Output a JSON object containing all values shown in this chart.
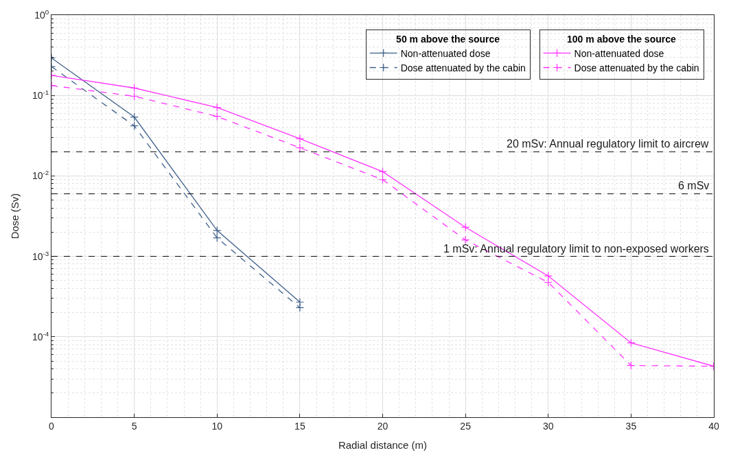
{
  "chart_data": {
    "type": "line",
    "xlabel": "Radial distance (m)",
    "ylabel": "Dose (Sv)",
    "x": [
      0,
      5,
      10,
      15,
      20,
      25,
      30,
      35,
      40
    ],
    "xlim": [
      0,
      40
    ],
    "xticks": [
      0,
      5,
      10,
      15,
      20,
      25,
      30,
      35,
      40
    ],
    "log": "y",
    "ylim": [
      1e-05,
      1
    ],
    "yticks": [
      {
        "value": 1e-05,
        "label": null
      },
      {
        "value": 0.0001,
        "label": "10$^{-4}$"
      },
      {
        "value": 0.001,
        "label": "10$^{-3}$"
      },
      {
        "value": 0.01,
        "label": "10$^{-2}$"
      },
      {
        "value": 0.1,
        "label": "10$^{-1}$"
      },
      {
        "value": 1,
        "label": "10$^{0}$"
      }
    ],
    "grid": true,
    "marker": "cross",
    "legend": "top right",
    "annotations": [
      "50 m above the source",
      "100 m above the source"
    ],
    "series": [
      {
        "name": "Non-attenuated dose",
        "color": "#3e5f8a",
        "line_style": "solid",
        "values": [
          0.293,
          0.054,
          0.0021,
          0.00027,
          null,
          null,
          null,
          null,
          null
        ]
      },
      {
        "name": "Dose attenuated by the cabin",
        "color": "#3e5f8a",
        "line_style": "dashed",
        "values": [
          0.229,
          0.042,
          0.0017,
          0.00023,
          null,
          null,
          null,
          null,
          null
        ]
      },
      {
        "name": "Non-attenuated dose",
        "color": "#ff33ff",
        "line_style": "solid",
        "values": [
          0.178,
          0.124,
          0.071,
          0.029,
          0.0113,
          0.0023,
          0.00057,
          8.4e-05,
          4.3e-05
        ]
      },
      {
        "name": "Dose attenuated by the cabin",
        "color": "#ff33ff",
        "line_style": "dashed",
        "values": [
          0.133,
          0.098,
          0.055,
          0.0224,
          0.009,
          0.0016,
          0.000475,
          4.4e-05,
          4.3e-05
        ]
      }
    ],
    "ref_lines": [
      {
        "axis": "y",
        "value": 0.02,
        "label": "20 mSv: Annual regulatory limit to aircrew",
        "color": "#000000",
        "line_style": "dashed"
      },
      {
        "axis": "y",
        "value": 0.006,
        "label": "6 mSv",
        "color": "#000000",
        "line_style": "dashed"
      },
      {
        "axis": "y",
        "value": 0.001,
        "label": "1 mSv: Annual regulatory limit to non-exposed workers",
        "color": "#000000",
        "line_style": "dashed"
      }
    ]
  }
}
